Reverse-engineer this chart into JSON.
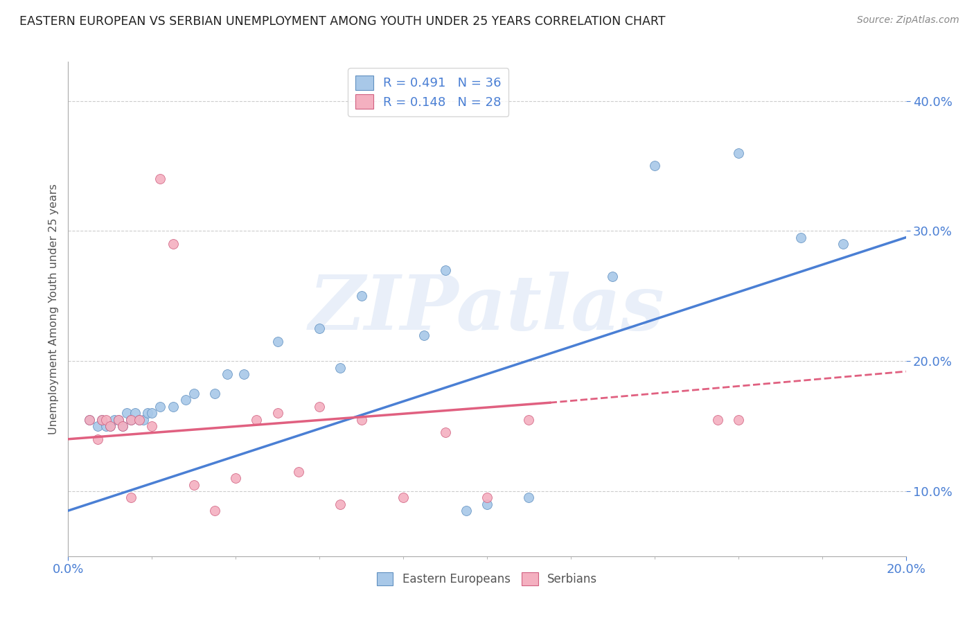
{
  "title": "EASTERN EUROPEAN VS SERBIAN UNEMPLOYMENT AMONG YOUTH UNDER 25 YEARS CORRELATION CHART",
  "source": "Source: ZipAtlas.com",
  "ylabel": "Unemployment Among Youth under 25 years",
  "xlim": [
    0.0,
    0.2
  ],
  "ylim": [
    0.05,
    0.43
  ],
  "y_ticks": [
    0.1,
    0.2,
    0.3,
    0.4
  ],
  "R_blue": 0.491,
  "N_blue": 36,
  "R_pink": 0.148,
  "N_pink": 28,
  "blue_color": "#a8c8e8",
  "pink_color": "#f4b0c0",
  "blue_edge_color": "#6090c0",
  "pink_edge_color": "#d06080",
  "blue_line_color": "#4a7fd4",
  "pink_line_color": "#e06080",
  "axis_color": "#4a7fd4",
  "watermark": "ZIPatlas",
  "watermark_color": "#c8d8f0",
  "blue_scatter_x": [
    0.005,
    0.007,
    0.008,
    0.009,
    0.01,
    0.011,
    0.012,
    0.013,
    0.014,
    0.015,
    0.016,
    0.017,
    0.018,
    0.019,
    0.02,
    0.022,
    0.025,
    0.028,
    0.03,
    0.035,
    0.038,
    0.042,
    0.05,
    0.06,
    0.065,
    0.07,
    0.085,
    0.09,
    0.095,
    0.1,
    0.11,
    0.13,
    0.14,
    0.16,
    0.175,
    0.185
  ],
  "blue_scatter_y": [
    0.155,
    0.15,
    0.155,
    0.15,
    0.15,
    0.155,
    0.155,
    0.15,
    0.16,
    0.155,
    0.16,
    0.155,
    0.155,
    0.16,
    0.16,
    0.165,
    0.165,
    0.17,
    0.175,
    0.175,
    0.19,
    0.19,
    0.215,
    0.225,
    0.195,
    0.25,
    0.22,
    0.27,
    0.085,
    0.09,
    0.095,
    0.265,
    0.35,
    0.36,
    0.295,
    0.29
  ],
  "pink_scatter_x": [
    0.005,
    0.007,
    0.008,
    0.009,
    0.01,
    0.012,
    0.013,
    0.015,
    0.015,
    0.017,
    0.02,
    0.022,
    0.025,
    0.03,
    0.035,
    0.04,
    0.045,
    0.05,
    0.055,
    0.06,
    0.065,
    0.07,
    0.08,
    0.09,
    0.1,
    0.11,
    0.155,
    0.16
  ],
  "pink_scatter_y": [
    0.155,
    0.14,
    0.155,
    0.155,
    0.15,
    0.155,
    0.15,
    0.155,
    0.095,
    0.155,
    0.15,
    0.34,
    0.29,
    0.105,
    0.085,
    0.11,
    0.155,
    0.16,
    0.115,
    0.165,
    0.09,
    0.155,
    0.095,
    0.145,
    0.095,
    0.155,
    0.155,
    0.155
  ],
  "blue_line_x": [
    0.0,
    0.2
  ],
  "blue_line_y": [
    0.085,
    0.295
  ],
  "pink_line_x": [
    0.0,
    0.185
  ],
  "pink_line_y": [
    0.14,
    0.185
  ],
  "bg_color": "#ffffff",
  "grid_color": "#cccccc"
}
